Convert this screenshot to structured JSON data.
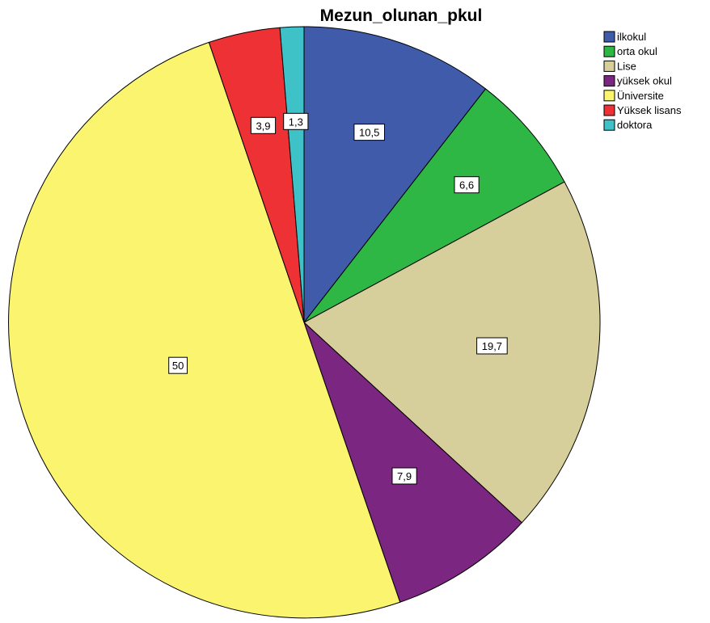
{
  "chart_data": {
    "type": "pie",
    "title": "Mezun_olunan_pkul",
    "categories": [
      "ilkokul",
      "orta okul",
      "Lise",
      "yüksek okul",
      "Üniversite",
      "Yüksek lisans",
      "doktora"
    ],
    "values": [
      10.5,
      6.6,
      19.7,
      7.9,
      50,
      3.9,
      1.3
    ],
    "value_labels": [
      "10,5",
      "6,6",
      "19,7",
      "7,9",
      "50",
      "3,9",
      "1,3"
    ],
    "colors": [
      "#3f5ba9",
      "#2eb745",
      "#d6cf9b",
      "#7b2681",
      "#fbf46e",
      "#ee3134",
      "#3ec2c8"
    ],
    "start_angle": "top",
    "direction": "clockwise",
    "legend": "top-right"
  }
}
